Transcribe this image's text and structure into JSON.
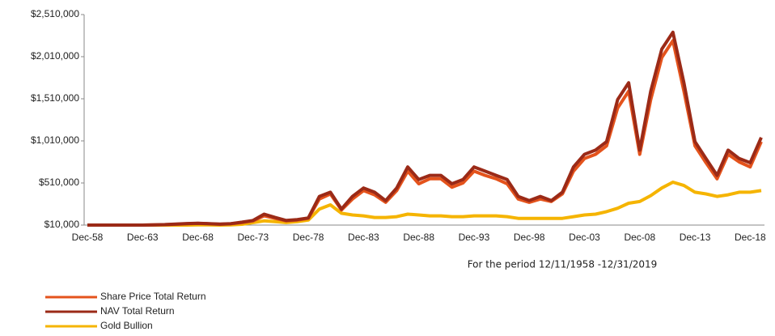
{
  "chart_data": {
    "type": "line",
    "x": [
      "Dec-58",
      "Dec-59",
      "Dec-60",
      "Dec-61",
      "Dec-62",
      "Dec-63",
      "Dec-64",
      "Dec-65",
      "Dec-66",
      "Dec-67",
      "Dec-68",
      "Dec-69",
      "Dec-70",
      "Dec-71",
      "Dec-72",
      "Dec-73",
      "Dec-74",
      "Dec-75",
      "Dec-76",
      "Dec-77",
      "Dec-78",
      "Dec-79",
      "Dec-80",
      "Dec-81",
      "Dec-82",
      "Dec-83",
      "Dec-84",
      "Dec-85",
      "Dec-86",
      "Dec-87",
      "Dec-88",
      "Dec-89",
      "Dec-90",
      "Dec-91",
      "Dec-92",
      "Dec-93",
      "Dec-94",
      "Dec-95",
      "Dec-96",
      "Dec-97",
      "Dec-98",
      "Dec-99",
      "Dec-00",
      "Dec-01",
      "Dec-02",
      "Dec-03",
      "Dec-04",
      "Dec-05",
      "Dec-06",
      "Dec-07",
      "Dec-08",
      "Dec-09",
      "Dec-10",
      "Dec-11",
      "Dec-12",
      "Dec-13",
      "Dec-14",
      "Dec-15",
      "Dec-16",
      "Dec-17",
      "Dec-18",
      "Dec-19"
    ],
    "xticks": [
      "Dec-58",
      "Dec-63",
      "Dec-68",
      "Dec-73",
      "Dec-78",
      "Dec-83",
      "Dec-88",
      "Dec-93",
      "Dec-98",
      "Dec-03",
      "Dec-08",
      "Dec-13",
      "Dec-18"
    ],
    "series": [
      {
        "name": "Gold Bullion",
        "color": "#f5b400",
        "values": [
          10000,
          10000,
          10000,
          10000,
          10000,
          10000,
          10000,
          10000,
          10000,
          10000,
          12000,
          12000,
          10000,
          12000,
          20000,
          40000,
          60000,
          50000,
          40000,
          50000,
          70000,
          200000,
          250000,
          150000,
          130000,
          120000,
          100000,
          100000,
          110000,
          140000,
          130000,
          120000,
          120000,
          110000,
          110000,
          120000,
          120000,
          120000,
          110000,
          90000,
          90000,
          90000,
          90000,
          90000,
          110000,
          130000,
          140000,
          170000,
          210000,
          270000,
          290000,
          360000,
          450000,
          520000,
          480000,
          400000,
          380000,
          350000,
          370000,
          400000,
          400000,
          420000
        ]
      },
      {
        "name": "Share Price Total Return",
        "color": "#e4531c",
        "values": [
          10000,
          10000,
          10000,
          10000,
          10000,
          10000,
          12000,
          15000,
          20000,
          25000,
          30000,
          25000,
          20000,
          25000,
          40000,
          60000,
          120000,
          90000,
          60000,
          70000,
          90000,
          320000,
          380000,
          190000,
          320000,
          420000,
          370000,
          280000,
          420000,
          650000,
          500000,
          560000,
          560000,
          460000,
          510000,
          650000,
          600000,
          560000,
          500000,
          320000,
          280000,
          320000,
          290000,
          380000,
          650000,
          800000,
          850000,
          950000,
          1400000,
          1600000,
          850000,
          1500000,
          2000000,
          2200000,
          1600000,
          950000,
          750000,
          560000,
          850000,
          760000,
          700000,
          1000000
        ]
      },
      {
        "name": "NAV Total Return",
        "color": "#9b2a17",
        "values": [
          10000,
          10000,
          10000,
          10000,
          10000,
          10000,
          13000,
          16000,
          22000,
          28000,
          32000,
          27000,
          22000,
          27000,
          45000,
          65000,
          140000,
          100000,
          65000,
          75000,
          95000,
          350000,
          400000,
          200000,
          350000,
          450000,
          400000,
          300000,
          450000,
          700000,
          550000,
          600000,
          600000,
          500000,
          550000,
          700000,
          650000,
          600000,
          550000,
          350000,
          300000,
          350000,
          300000,
          400000,
          700000,
          850000,
          900000,
          1000000,
          1500000,
          1700000,
          900000,
          1600000,
          2100000,
          2300000,
          1700000,
          1000000,
          800000,
          600000,
          900000,
          800000,
          750000,
          1050000
        ]
      }
    ],
    "ylim": [
      10000,
      2510000
    ],
    "yticks": [
      {
        "value": 10000,
        "label": "$10,000"
      },
      {
        "value": 510000,
        "label": "$510,000"
      },
      {
        "value": 1010000,
        "label": "$1,010,000"
      },
      {
        "value": 1510000,
        "label": "$1,510,000"
      },
      {
        "value": 2010000,
        "label": "$2,010,000"
      },
      {
        "value": 2510000,
        "label": "$2,510,000"
      }
    ],
    "legend_order": [
      "Share Price Total Return",
      "NAV Total Return",
      "Gold Bullion"
    ],
    "legend_position": "bottom-left",
    "footnote": "For the period 12/11/1958 -12/31/2019"
  }
}
